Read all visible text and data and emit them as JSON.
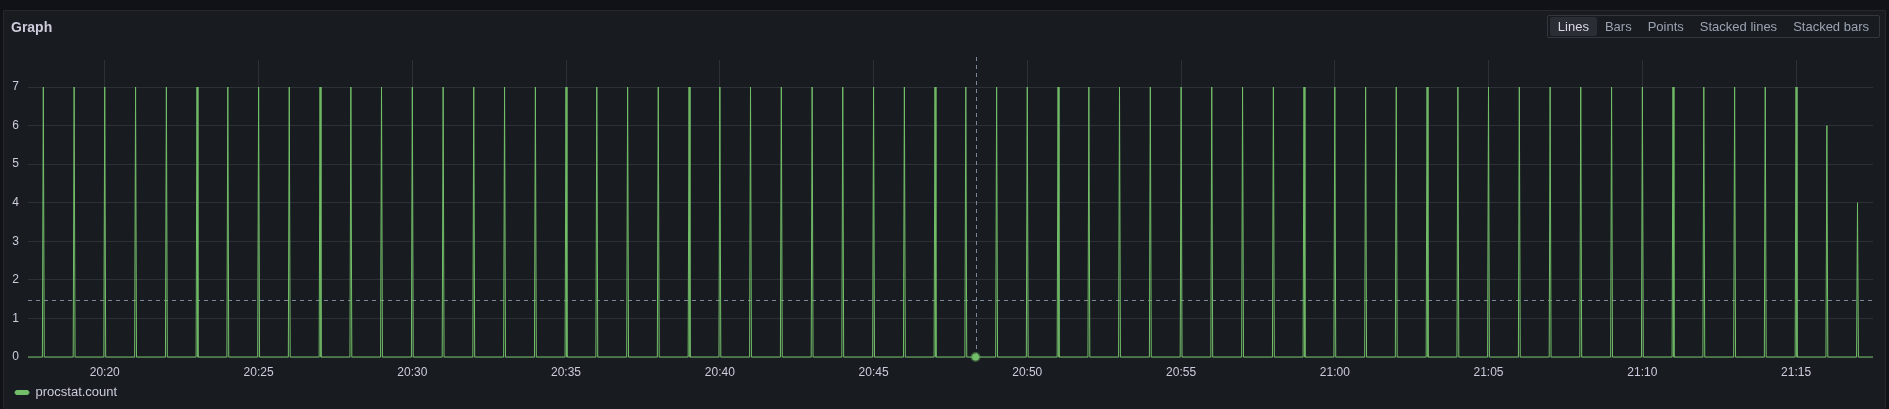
{
  "chart_data": {
    "type": "line",
    "title": "Graph",
    "annotations": [
      "Lines",
      "Bars",
      "Points",
      "Stacked lines",
      "Stacked bars"
    ],
    "x": [
      20.2917,
      20.2995,
      20.3,
      20.3005,
      20.3162,
      20.3167,
      20.3172,
      20.3328,
      20.3333,
      20.3338,
      20.3495,
      20.35,
      20.3505,
      20.3662,
      20.3667,
      20.3672,
      20.3828,
      20.3833,
      20.3838,
      20.3995,
      20.4,
      20.4005,
      20.4162,
      20.4167,
      20.4172,
      20.4328,
      20.4333,
      20.4338,
      20.4495,
      20.45,
      20.4505,
      20.4662,
      20.4667,
      20.4672,
      20.4828,
      20.4833,
      20.4838,
      20.4995,
      20.5,
      20.5005,
      20.5162,
      20.5167,
      20.5172,
      20.5328,
      20.5333,
      20.5338,
      20.5495,
      20.55,
      20.5505,
      20.5662,
      20.5667,
      20.5672,
      20.5828,
      20.5833,
      20.5838,
      20.5995,
      20.6,
      20.6005,
      20.6162,
      20.6167,
      20.6172,
      20.6328,
      20.6333,
      20.6338,
      20.6495,
      20.65,
      20.6505,
      20.6662,
      20.6667,
      20.6672,
      20.6828,
      20.6833,
      20.6838,
      20.6995,
      20.7,
      20.7005,
      20.7162,
      20.7167,
      20.7172,
      20.7328,
      20.7333,
      20.7338,
      20.7495,
      20.75,
      20.7505,
      20.7662,
      20.7667,
      20.7672,
      20.7828,
      20.7833,
      20.7838,
      20.7995,
      20.8,
      20.8005,
      20.8162,
      20.8167,
      20.8172,
      20.8328,
      20.8333,
      20.8338,
      20.8495,
      20.85,
      20.8505,
      20.8662,
      20.8667,
      20.8672,
      20.8828,
      20.8833,
      20.8838,
      20.8995,
      20.9,
      20.9005,
      20.9162,
      20.9167,
      20.9172,
      20.9328,
      20.9333,
      20.9338,
      20.9495,
      20.95,
      20.9505,
      20.9662,
      20.9667,
      20.9672,
      20.9828,
      20.9833,
      20.9838,
      20.9995,
      21,
      21.0005,
      21.0162,
      21.0167,
      21.0172,
      21.0328,
      21.0333,
      21.0338,
      21.0495,
      21.05,
      21.0505,
      21.0662,
      21.0667,
      21.0672,
      21.0828,
      21.0833,
      21.0838,
      21.0995,
      21.1,
      21.1005,
      21.1162,
      21.1167,
      21.1172,
      21.1328,
      21.1333,
      21.1338,
      21.1495,
      21.15,
      21.1505,
      21.1662,
      21.1667,
      21.1672,
      21.1828,
      21.1833,
      21.1838,
      21.1995,
      21.2,
      21.2005,
      21.2162,
      21.2167,
      21.2172,
      21.2328,
      21.2333,
      21.2338,
      21.2495,
      21.25,
      21.2505,
      21.2662,
      21.2667,
      21.2672,
      21.2828,
      21.2833,
      21.2838,
      21.2917
    ],
    "series": [
      {
        "name": "procstat.count",
        "color": "#73bf69",
        "values": [
          0,
          0,
          7,
          0,
          0,
          7,
          0,
          0,
          7,
          0,
          0,
          7,
          0,
          0,
          7,
          0,
          0,
          7,
          0,
          0,
          7,
          0,
          0,
          7,
          0,
          0,
          7,
          0,
          0,
          7,
          0,
          0,
          7,
          0,
          0,
          7,
          0,
          0,
          7,
          0,
          0,
          7,
          0,
          0,
          7,
          0,
          0,
          7,
          0,
          0,
          7,
          0,
          0,
          7,
          0,
          0,
          7,
          0,
          0,
          7,
          0,
          0,
          7,
          0,
          0,
          7,
          0,
          0,
          7,
          0,
          0,
          7,
          0,
          0,
          7,
          0,
          0,
          7,
          0,
          0,
          7,
          0,
          0,
          7,
          0,
          0,
          7,
          0,
          0,
          7,
          0,
          0,
          7,
          0,
          0,
          7,
          0,
          0,
          7,
          0,
          0,
          7,
          0,
          0,
          7,
          0,
          0,
          7,
          0,
          0,
          7,
          0,
          0,
          7,
          0,
          0,
          7,
          0,
          0,
          7,
          0,
          0,
          7,
          0,
          0,
          7,
          0,
          0,
          7,
          0,
          0,
          7,
          0,
          0,
          7,
          0,
          0,
          7,
          0,
          0,
          7,
          0,
          0,
          7,
          0,
          0,
          7,
          0,
          0,
          7,
          0,
          0,
          7,
          0,
          0,
          7,
          0,
          0,
          7,
          0,
          0,
          7,
          0,
          0,
          7,
          0,
          0,
          7,
          0,
          0,
          7,
          0,
          0,
          7,
          0,
          0,
          6,
          0,
          0,
          4,
          0,
          0
        ]
      },
      {
        "type": "scatter",
        "color": "#73bf69",
        "x": [
          20.8053
        ],
        "values": [
          0
        ]
      }
    ],
    "xlim": [
      20.2917,
      21.2917
    ],
    "xticks": [
      {
        "value": 20.3333,
        "label": "20:20"
      },
      {
        "value": 20.4167,
        "label": "20:25"
      },
      {
        "value": 20.5,
        "label": "20:30"
      },
      {
        "value": 20.5833,
        "label": "20:35"
      },
      {
        "value": 20.6667,
        "label": "20:40"
      },
      {
        "value": 20.75,
        "label": "20:45"
      },
      {
        "value": 20.8333,
        "label": "20:50"
      },
      {
        "value": 20.9167,
        "label": "20:55"
      },
      {
        "value": 21,
        "label": "21:00"
      },
      {
        "value": 21.0833,
        "label": "21:05"
      },
      {
        "value": 21.1667,
        "label": "21:10"
      },
      {
        "value": 21.25,
        "label": "21:15"
      }
    ],
    "ylim": [
      0,
      7.7
    ],
    "yticks": [
      0,
      1,
      2,
      3,
      4,
      5,
      6,
      7
    ],
    "grid": true,
    "legend": "bottom left",
    "ref_lines": [
      {
        "axis": "x",
        "value": 20.8053,
        "color": "#7c8798",
        "line_style": "dashed"
      },
      {
        "axis": "y",
        "value": 1.47,
        "color": "#7c8798",
        "line_style": "dashed"
      }
    ]
  }
}
